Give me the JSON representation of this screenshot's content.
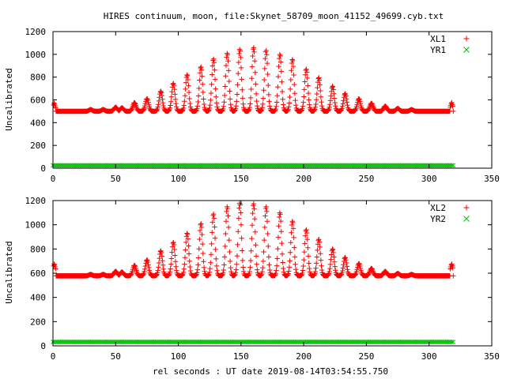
{
  "chart_data": {
    "title": "HIRES continuum, moon, file:Skynet_58709_moon_41152_49699.cyb.txt",
    "xlabel": "rel seconds : UT date 2019-08-14T03:54:55.750",
    "colors": {
      "XL": "#ff0000",
      "YR": "#00c000"
    },
    "panels": [
      {
        "type": "scatter",
        "ylabel": "Uncalibrated",
        "xlim": [
          0,
          350
        ],
        "ylim": [
          0,
          1200
        ],
        "xticks": [
          0,
          50,
          100,
          150,
          200,
          250,
          300,
          350
        ],
        "yticks": [
          0,
          200,
          400,
          600,
          800,
          1000,
          1200
        ],
        "legend": "top-right",
        "series": [
          {
            "name": "XL1",
            "marker": "plus",
            "baseline": 500,
            "start_spike": [
              1,
              575
            ],
            "end_spike": [
              318,
              580
            ],
            "peaks": [
              [
                30,
                515
              ],
              [
                40,
                515
              ],
              [
                50,
                535
              ],
              [
                55,
                530
              ],
              [
                65,
                575
              ],
              [
                75,
                610
              ],
              [
                86,
                675
              ],
              [
                96,
                745
              ],
              [
                107,
                820
              ],
              [
                118,
                890
              ],
              [
                128,
                960
              ],
              [
                139,
                1010
              ],
              [
                149,
                1045
              ],
              [
                160,
                1060
              ],
              [
                170,
                1035
              ],
              [
                181,
                1000
              ],
              [
                191,
                955
              ],
              [
                202,
                870
              ],
              [
                212,
                795
              ],
              [
                223,
                720
              ],
              [
                233,
                655
              ],
              [
                244,
                610
              ],
              [
                254,
                570
              ],
              [
                265,
                545
              ],
              [
                275,
                525
              ],
              [
                286,
                515
              ]
            ]
          },
          {
            "name": "YR1",
            "marker": "cross",
            "level": 25,
            "xrange": [
              0,
              320
            ]
          }
        ]
      },
      {
        "type": "scatter",
        "ylabel": "Uncalibrated",
        "xlim": [
          0,
          350
        ],
        "ylim": [
          0,
          1200
        ],
        "xticks": [
          0,
          50,
          100,
          150,
          200,
          250,
          300,
          350
        ],
        "yticks": [
          0,
          200,
          400,
          600,
          800,
          1000,
          1200
        ],
        "legend": "top-right",
        "series": [
          {
            "name": "XL2",
            "marker": "plus",
            "baseline": 578,
            "start_spike": [
              1,
              680
            ],
            "end_spike": [
              318,
              680
            ],
            "peaks": [
              [
                30,
                590
              ],
              [
                40,
                590
              ],
              [
                50,
                615
              ],
              [
                55,
                610
              ],
              [
                65,
                665
              ],
              [
                75,
                710
              ],
              [
                86,
                785
              ],
              [
                96,
                855
              ],
              [
                107,
                930
              ],
              [
                118,
                1010
              ],
              [
                128,
                1090
              ],
              [
                139,
                1150
              ],
              [
                149,
                1180
              ],
              [
                160,
                1175
              ],
              [
                170,
                1150
              ],
              [
                181,
                1100
              ],
              [
                191,
                1030
              ],
              [
                202,
                960
              ],
              [
                212,
                880
              ],
              [
                223,
                800
              ],
              [
                233,
                730
              ],
              [
                244,
                680
              ],
              [
                254,
                640
              ],
              [
                265,
                615
              ],
              [
                275,
                598
              ],
              [
                286,
                590
              ]
            ]
          },
          {
            "name": "YR2",
            "marker": "cross",
            "level": 32,
            "xrange": [
              0,
              320
            ]
          }
        ]
      }
    ]
  }
}
